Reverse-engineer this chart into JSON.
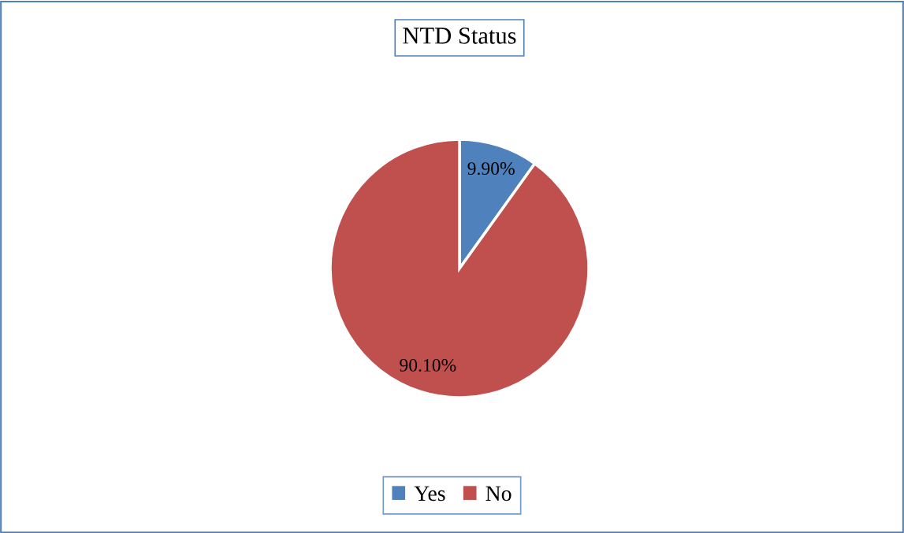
{
  "chart_data": {
    "type": "pie",
    "title": "NTD Status",
    "categories": [
      "Yes",
      "No"
    ],
    "values": [
      9.9,
      90.1
    ],
    "colors": [
      "#4f81bd",
      "#c0504d"
    ],
    "value_labels": [
      "9.90%",
      "90.10%"
    ],
    "legend": "bottom"
  }
}
